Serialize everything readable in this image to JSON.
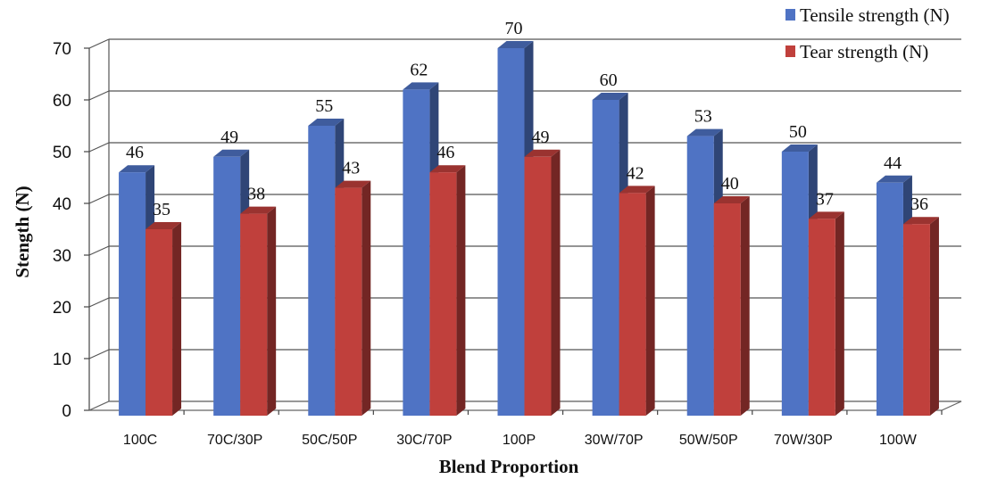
{
  "chart_data": {
    "type": "bar",
    "title": "",
    "xlabel": "Blend Proportion",
    "ylabel": "Stength (N)",
    "ylim": [
      0,
      70
    ],
    "yticks": [
      0,
      10,
      20,
      30,
      40,
      50,
      60,
      70
    ],
    "grid": true,
    "legend_position": "top-right",
    "categories": [
      "100C",
      "70C/30P",
      "50C/50P",
      "30C/70P",
      "100P",
      "30W/70P",
      "50W/50P",
      "70W/30P",
      "100W"
    ],
    "series": [
      {
        "name": "Tensile strength (N)",
        "color": "#4f73c4",
        "values": [
          46,
          49,
          55,
          62,
          70,
          60,
          53,
          50,
          44
        ]
      },
      {
        "name": "Tear strength (N)",
        "color": "#c0403c",
        "values": [
          35,
          38,
          43,
          46,
          49,
          42,
          40,
          37,
          36
        ]
      }
    ]
  }
}
